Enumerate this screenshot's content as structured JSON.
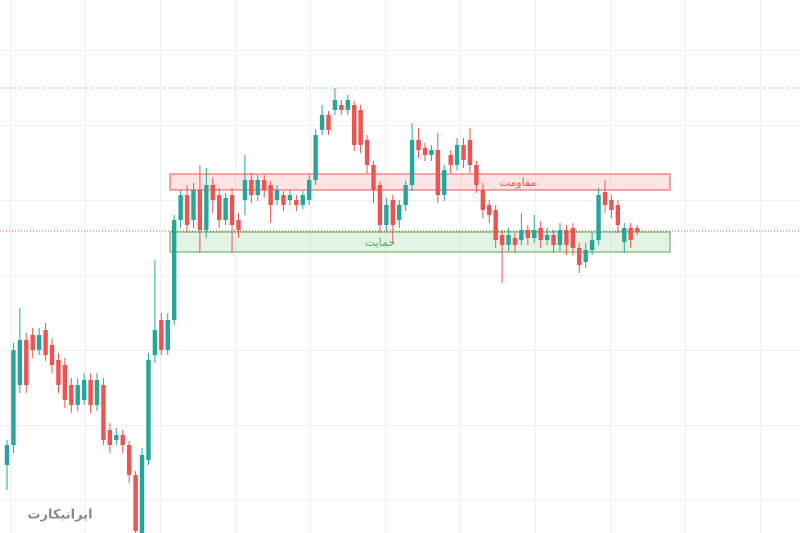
{
  "chart_data": {
    "type": "candlestick",
    "ylim": [
      0,
      533
    ],
    "up_color": "#26a69a",
    "down_color": "#ef5350",
    "candles": [
      [
        68,
        93,
        43,
        88
      ],
      [
        88,
        190,
        80,
        183
      ],
      [
        148,
        225,
        140,
        193
      ],
      [
        193,
        200,
        140,
        148
      ],
      [
        198,
        205,
        175,
        183
      ],
      [
        183,
        205,
        178,
        198
      ],
      [
        203,
        210,
        172,
        178
      ],
      [
        188,
        195,
        160,
        168
      ],
      [
        173,
        180,
        140,
        148
      ],
      [
        168,
        175,
        125,
        133
      ],
      [
        148,
        155,
        120,
        128
      ],
      [
        128,
        155,
        122,
        148
      ],
      [
        133,
        160,
        128,
        153
      ],
      [
        153,
        160,
        120,
        128
      ],
      [
        128,
        160,
        122,
        153
      ],
      [
        148,
        155,
        88,
        93
      ],
      [
        103,
        110,
        80,
        88
      ],
      [
        93,
        105,
        88,
        98
      ],
      [
        98,
        103,
        80,
        88
      ],
      [
        88,
        92,
        50,
        58
      ],
      [
        58,
        62,
        0,
        2
      ],
      [
        0,
        85,
        0,
        78
      ],
      [
        73,
        180,
        68,
        173
      ],
      [
        178,
        273,
        170,
        203
      ],
      [
        213,
        220,
        178,
        183
      ],
      [
        183,
        220,
        178,
        213
      ],
      [
        213,
        318,
        208,
        313
      ],
      [
        313,
        343,
        305,
        338
      ],
      [
        338,
        348,
        300,
        308
      ],
      [
        313,
        350,
        305,
        343
      ],
      [
        343,
        368,
        280,
        303
      ],
      [
        303,
        365,
        295,
        348
      ],
      [
        348,
        355,
        320,
        333
      ],
      [
        338,
        345,
        305,
        313
      ],
      [
        313,
        340,
        308,
        335
      ],
      [
        338,
        345,
        280,
        308
      ],
      [
        313,
        320,
        295,
        303
      ],
      [
        333,
        378,
        318,
        353
      ],
      [
        353,
        360,
        330,
        338
      ],
      [
        338,
        358,
        332,
        353
      ],
      [
        353,
        358,
        335,
        343
      ],
      [
        348,
        352,
        310,
        328
      ],
      [
        333,
        348,
        328,
        343
      ],
      [
        338,
        342,
        322,
        328
      ],
      [
        333,
        343,
        328,
        338
      ],
      [
        333,
        338,
        322,
        328
      ],
      [
        328,
        342,
        324,
        338
      ],
      [
        333,
        358,
        328,
        353
      ],
      [
        353,
        404,
        348,
        398
      ],
      [
        403,
        428,
        398,
        418
      ],
      [
        418,
        422,
        398,
        403
      ],
      [
        423,
        445,
        418,
        433
      ],
      [
        428,
        433,
        418,
        423
      ],
      [
        423,
        438,
        418,
        433
      ],
      [
        428,
        432,
        382,
        388
      ],
      [
        423,
        428,
        380,
        388
      ],
      [
        393,
        398,
        360,
        368
      ],
      [
        368,
        372,
        330,
        343
      ],
      [
        348,
        352,
        300,
        308
      ],
      [
        308,
        335,
        302,
        328
      ],
      [
        333,
        338,
        290,
        308
      ],
      [
        313,
        333,
        305,
        328
      ],
      [
        328,
        352,
        322,
        348
      ],
      [
        348,
        410,
        342,
        393
      ],
      [
        393,
        405,
        375,
        383
      ],
      [
        385,
        390,
        372,
        378
      ],
      [
        378,
        388,
        372,
        383
      ],
      [
        383,
        400,
        330,
        338
      ],
      [
        338,
        368,
        332,
        363
      ],
      [
        378,
        383,
        360,
        368
      ],
      [
        368,
        395,
        362,
        388
      ],
      [
        388,
        395,
        365,
        373
      ],
      [
        393,
        405,
        360,
        368
      ],
      [
        368,
        372,
        340,
        348
      ],
      [
        343,
        350,
        315,
        323
      ],
      [
        328,
        333,
        310,
        318
      ],
      [
        323,
        328,
        285,
        293
      ],
      [
        298,
        303,
        250,
        288
      ],
      [
        288,
        305,
        282,
        298
      ],
      [
        295,
        300,
        280,
        288
      ],
      [
        293,
        320,
        288,
        303
      ],
      [
        303,
        308,
        288,
        295
      ],
      [
        295,
        318,
        290,
        303
      ],
      [
        305,
        312,
        285,
        293
      ],
      [
        293,
        305,
        288,
        298
      ],
      [
        298,
        303,
        280,
        288
      ],
      [
        288,
        310,
        282,
        303
      ],
      [
        303,
        308,
        278,
        288
      ],
      [
        305,
        310,
        278,
        285
      ],
      [
        285,
        290,
        260,
        268
      ],
      [
        271,
        290,
        265,
        283
      ],
      [
        283,
        300,
        278,
        293
      ],
      [
        293,
        345,
        288,
        338
      ],
      [
        341,
        353,
        320,
        328
      ],
      [
        333,
        338,
        315,
        323
      ],
      [
        328,
        333,
        300,
        308
      ],
      [
        291,
        310,
        280,
        305
      ],
      [
        305,
        310,
        285,
        293
      ],
      [
        305,
        308,
        298,
        301
      ]
    ],
    "zones": [
      {
        "label": "مقاومت",
        "low": 343,
        "high": 359,
        "color": "#ef5350"
      },
      {
        "label": "حمایت",
        "low": 281,
        "high": 301,
        "color": "#4caf50"
      }
    ],
    "hlines": [
      {
        "value": 445,
        "color": "#9e9e9e"
      },
      {
        "value": 302,
        "color": "#ef5350"
      }
    ],
    "watermark": "ایرانیکارت"
  }
}
